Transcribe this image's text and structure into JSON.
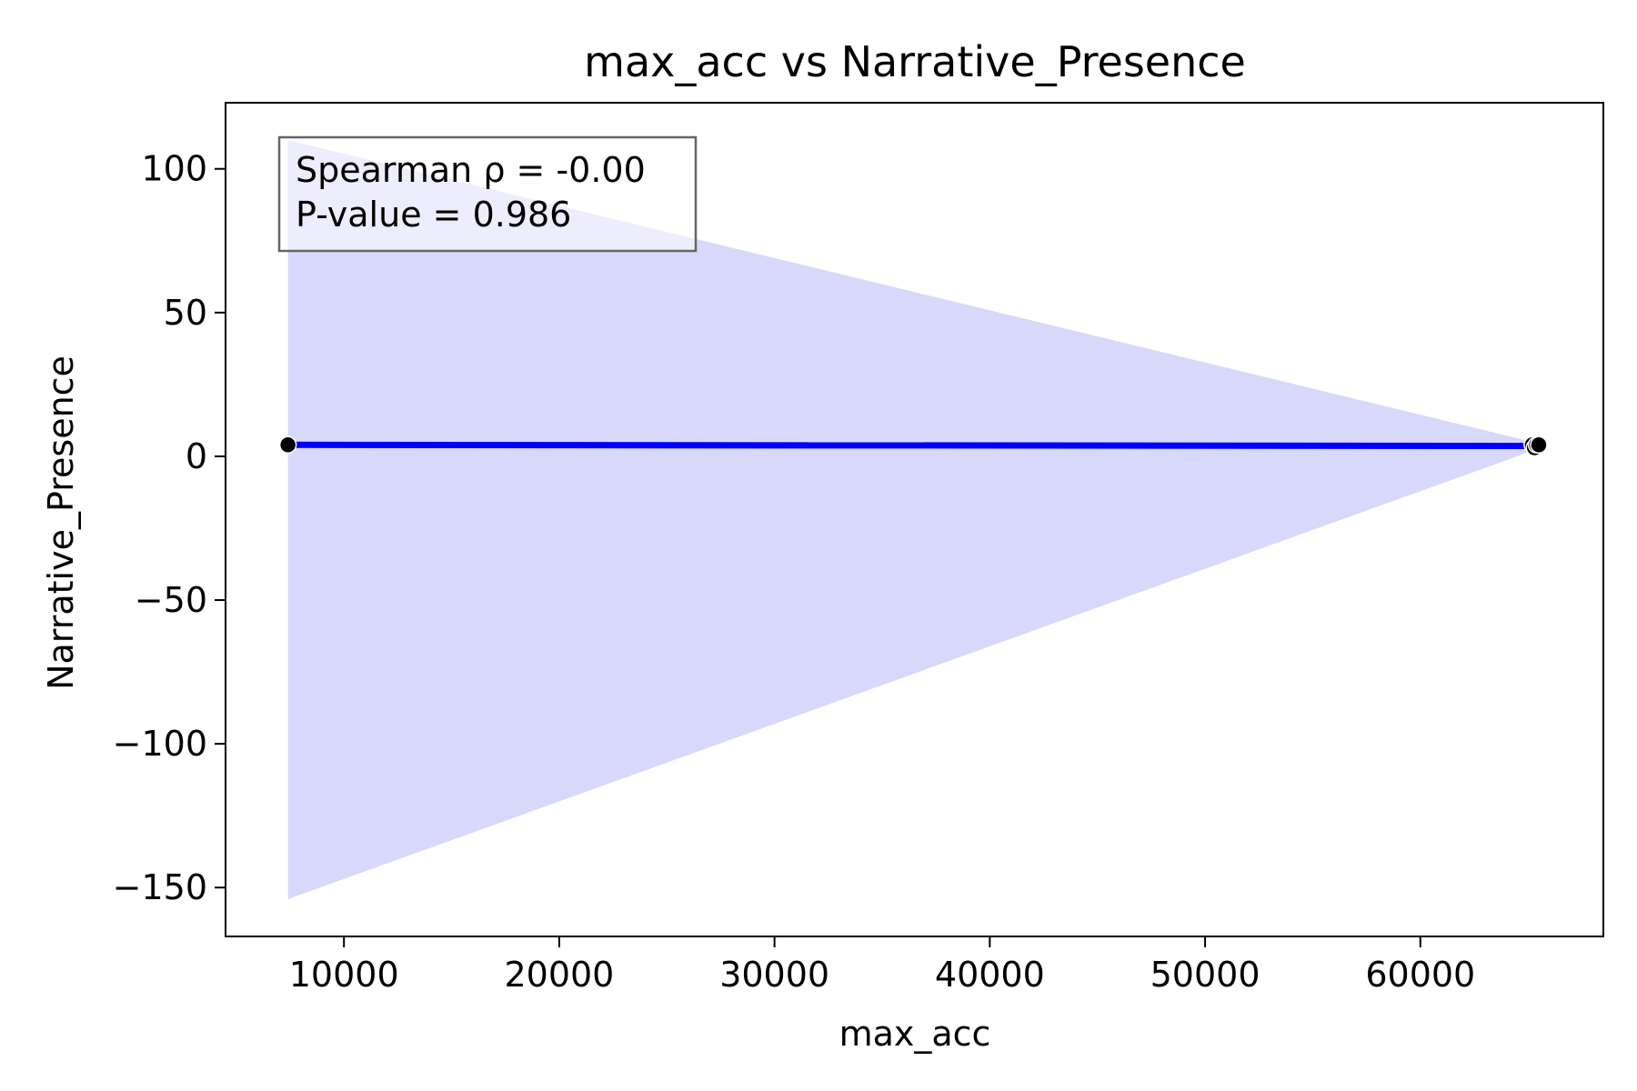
{
  "chart_data": {
    "type": "scatter",
    "title": "max_acc vs Narrative_Presence",
    "xlabel": "max_acc",
    "ylabel": "Narrative_Presence",
    "xlim": [
      4500,
      68500
    ],
    "ylim": [
      -167,
      123
    ],
    "x_ticks": [
      10000,
      20000,
      30000,
      40000,
      50000,
      60000
    ],
    "x_tick_labels": [
      "10000",
      "20000",
      "30000",
      "40000",
      "50000",
      "60000"
    ],
    "y_ticks": [
      100,
      50,
      0,
      -50,
      -100,
      -150
    ],
    "y_tick_labels": [
      "100",
      "50",
      "0",
      "−50",
      "−100",
      "−150"
    ],
    "points": [
      {
        "x": 7400,
        "y": 4
      },
      {
        "x": 65200,
        "y": 4
      },
      {
        "x": 65300,
        "y": 3
      },
      {
        "x": 65400,
        "y": 4
      },
      {
        "x": 65500,
        "y": 4
      }
    ],
    "fit_line": {
      "x": [
        7400,
        65500
      ],
      "y": [
        4.0,
        3.6
      ],
      "color": "#0000ff"
    },
    "confidence_band": {
      "x": [
        7400,
        65500
      ],
      "upper": [
        110,
        4.5
      ],
      "lower": [
        -154,
        2.7
      ],
      "color": "#d8d8fb"
    },
    "annotation": {
      "lines": [
        "Spearman ρ = -0.00",
        "P-value = 0.986"
      ],
      "placement": "top-left"
    },
    "grid": false,
    "point_color": "#000000"
  }
}
